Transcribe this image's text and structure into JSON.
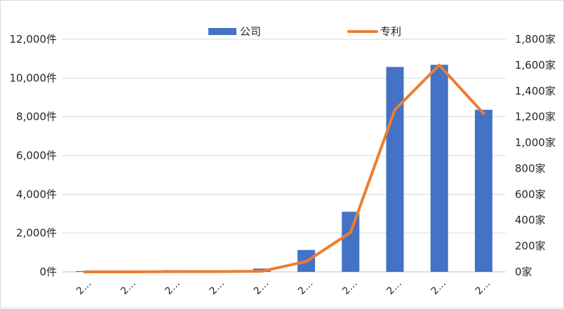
{
  "chart_data": {
    "type": "bar",
    "categories": [
      "2…",
      "2…",
      "2…",
      "2…",
      "2…",
      "2…",
      "2…",
      "2…",
      "2…",
      "2…"
    ],
    "series": [
      {
        "name": "公司",
        "type": "bar",
        "axis": "left",
        "color": "#4472c4",
        "values": [
          40,
          40,
          90,
          40,
          170,
          1130,
          3100,
          10570,
          10680,
          8360
        ]
      },
      {
        "name": "专利",
        "type": "line",
        "axis": "right",
        "color": "#ed7d31",
        "values": [
          0,
          0,
          2,
          2,
          5,
          80,
          305,
          1255,
          1600,
          1225
        ]
      }
    ],
    "left_axis": {
      "ylim": [
        0,
        12000
      ],
      "ticks": [
        0,
        2000,
        4000,
        6000,
        8000,
        10000,
        12000
      ],
      "tick_labels": [
        "0件",
        "2,000件",
        "4,000件",
        "6,000件",
        "8,000件",
        "10,000件",
        "12,000件"
      ]
    },
    "right_axis": {
      "ylim": [
        0,
        1800
      ],
      "ticks": [
        0,
        200,
        400,
        600,
        800,
        1000,
        1200,
        1400,
        1600,
        1800
      ],
      "tick_labels": [
        "0家",
        "200家",
        "400家",
        "600家",
        "800家",
        "1,000家",
        "1,200家",
        "1,400家",
        "1,600家",
        "1,800家"
      ]
    },
    "legend": {
      "position": "top",
      "entries": [
        "公司",
        "专利"
      ]
    },
    "grid": true
  }
}
